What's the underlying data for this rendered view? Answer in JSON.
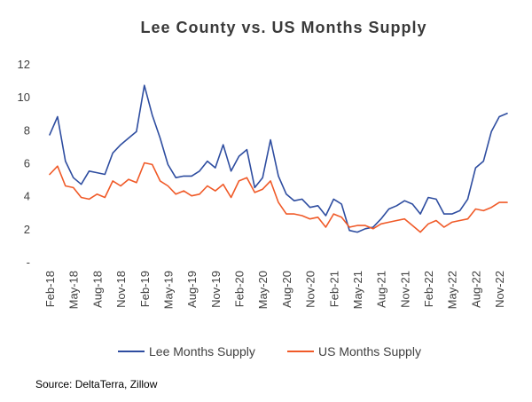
{
  "chart_data": {
    "type": "line",
    "title": "Lee County vs. US Months Supply",
    "source": "Source: DeltaTerra, Zillow",
    "xlabel": "",
    "ylabel": "",
    "ylim": [
      0,
      12
    ],
    "y_ticks": [
      {
        "value": 12,
        "label": "12"
      },
      {
        "value": 10,
        "label": "10"
      },
      {
        "value": 8,
        "label": "8"
      },
      {
        "value": 6,
        "label": "6"
      },
      {
        "value": 4,
        "label": "4"
      },
      {
        "value": 2,
        "label": "2"
      },
      {
        "value": 0,
        "label": "-"
      }
    ],
    "x_tick_labels": [
      {
        "index": 0,
        "label": "Feb-18"
      },
      {
        "index": 3,
        "label": "May-18"
      },
      {
        "index": 6,
        "label": "Aug-18"
      },
      {
        "index": 9,
        "label": "Nov-18"
      },
      {
        "index": 12,
        "label": "Feb-19"
      },
      {
        "index": 15,
        "label": "May-19"
      },
      {
        "index": 18,
        "label": "Aug-19"
      },
      {
        "index": 21,
        "label": "Nov-19"
      },
      {
        "index": 24,
        "label": "Feb-20"
      },
      {
        "index": 27,
        "label": "May-20"
      },
      {
        "index": 30,
        "label": "Aug-20"
      },
      {
        "index": 33,
        "label": "Nov-20"
      },
      {
        "index": 36,
        "label": "Feb-21"
      },
      {
        "index": 39,
        "label": "May-21"
      },
      {
        "index": 42,
        "label": "Aug-21"
      },
      {
        "index": 45,
        "label": "Nov-21"
      },
      {
        "index": 48,
        "label": "Feb-22"
      },
      {
        "index": 51,
        "label": "May-22"
      },
      {
        "index": 54,
        "label": "Aug-22"
      },
      {
        "index": 57,
        "label": "Nov-22"
      }
    ],
    "months_count": 59,
    "grid": false,
    "legend_position": "bottom",
    "series": [
      {
        "name": "Lee Months Supply",
        "color": "#2E4DA0",
        "values": [
          7.7,
          8.8,
          6.1,
          5.1,
          4.7,
          5.5,
          5.4,
          5.3,
          6.6,
          7.1,
          7.5,
          7.9,
          10.7,
          8.9,
          7.5,
          5.9,
          5.1,
          5.2,
          5.2,
          5.5,
          6.1,
          5.7,
          7.1,
          5.5,
          6.4,
          6.8,
          4.5,
          5.1,
          7.4,
          5.2,
          4.1,
          3.7,
          3.8,
          3.3,
          3.4,
          2.8,
          3.8,
          3.5,
          1.9,
          1.8,
          2.0,
          2.1,
          2.6,
          3.2,
          3.4,
          3.7,
          3.5,
          2.9,
          3.9,
          3.8,
          2.9,
          2.9,
          3.1,
          3.8,
          5.7,
          6.1,
          7.9,
          8.8,
          9.0
        ]
      },
      {
        "name": "US Months Supply",
        "color": "#F05A28",
        "values": [
          5.3,
          5.8,
          4.6,
          4.5,
          3.9,
          3.8,
          4.1,
          3.9,
          4.9,
          4.6,
          5.0,
          4.8,
          6.0,
          5.9,
          4.9,
          4.6,
          4.1,
          4.3,
          4.0,
          4.1,
          4.6,
          4.3,
          4.7,
          3.9,
          4.9,
          5.1,
          4.2,
          4.4,
          4.9,
          3.6,
          2.9,
          2.9,
          2.8,
          2.6,
          2.7,
          2.1,
          2.9,
          2.7,
          2.1,
          2.2,
          2.2,
          2.0,
          2.3,
          2.4,
          2.5,
          2.6,
          2.2,
          1.8,
          2.3,
          2.5,
          2.1,
          2.4,
          2.5,
          2.6,
          3.2,
          3.1,
          3.3,
          3.6,
          3.6
        ]
      }
    ]
  }
}
